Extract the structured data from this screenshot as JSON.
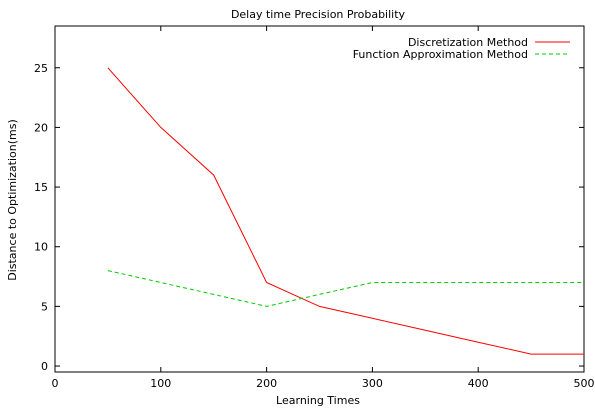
{
  "chart_data": {
    "type": "line",
    "title": "Delay time Precision Probability",
    "xlabel": "Learning Times",
    "ylabel": "Distance to Optimization(ms)",
    "xlim": [
      0,
      500
    ],
    "ylim": [
      -0.5,
      28.5
    ],
    "xticks": [
      0,
      100,
      200,
      300,
      400,
      500
    ],
    "yticks": [
      0,
      5,
      10,
      15,
      20,
      25
    ],
    "grid": false,
    "legend_position": "top-right",
    "series": [
      {
        "name": "Discretization Method",
        "color": "#ff0000",
        "dash": "solid",
        "x": [
          50,
          100,
          150,
          200,
          250,
          300,
          350,
          400,
          450,
          500
        ],
        "y": [
          25,
          20,
          16,
          7,
          5,
          4,
          3,
          2,
          1,
          1
        ]
      },
      {
        "name": "Function Approximation Method",
        "color": "#00cc00",
        "dash": "dashed",
        "x": [
          50,
          100,
          150,
          200,
          250,
          300,
          350,
          400,
          450,
          500
        ],
        "y": [
          8,
          7,
          6,
          5,
          6,
          7,
          7,
          7,
          7,
          7
        ]
      }
    ]
  }
}
